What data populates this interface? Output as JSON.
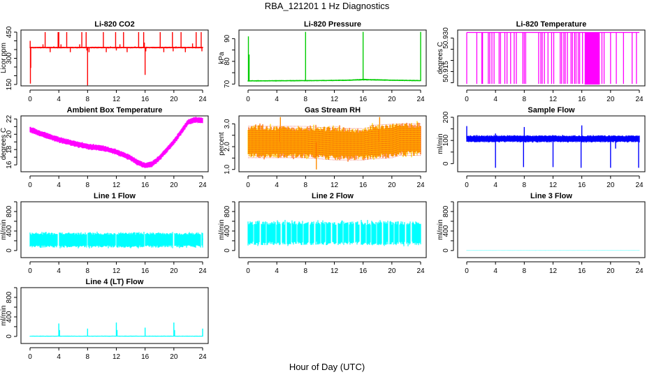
{
  "title": "RBA_121201  1 Hz Diagnostics",
  "xlabel": "Hour of Day (UTC)",
  "chart_data": [
    {
      "type": "line",
      "title": "Li-820 CO2",
      "ylabel": "Licor ppm",
      "color": "#ff0000",
      "ylim": [
        142,
        462
      ],
      "yticks": [
        150,
        200,
        250,
        300,
        350,
        400,
        450
      ],
      "ytick_labels": [
        "150",
        "",
        "",
        "300",
        "",
        "",
        "450"
      ],
      "xticks": [
        0,
        4,
        8,
        12,
        16,
        20,
        24
      ],
      "band": {
        "x": [
          0,
          24
        ],
        "low": [
          357,
          357
        ],
        "high": [
          366,
          366
        ]
      },
      "spikes": [
        [
          0.02,
          400
        ],
        [
          0.05,
          155
        ],
        [
          0.1,
          245
        ],
        [
          1.8,
          380
        ],
        [
          2.1,
          450
        ],
        [
          2.8,
          335
        ],
        [
          3.3,
          368
        ],
        [
          3.9,
          450
        ],
        [
          4.0,
          450
        ],
        [
          4.3,
          380
        ],
        [
          5.1,
          450
        ],
        [
          5.6,
          335
        ],
        [
          6.9,
          380
        ],
        [
          7.2,
          450
        ],
        [
          7.8,
          450
        ],
        [
          7.9,
          345
        ],
        [
          8.0,
          145
        ],
        [
          8.2,
          335
        ],
        [
          10.2,
          450
        ],
        [
          10.6,
          335
        ],
        [
          11.2,
          368
        ],
        [
          11.9,
          450
        ],
        [
          12.0,
          345
        ],
        [
          12.5,
          380
        ],
        [
          13.0,
          450
        ],
        [
          13.5,
          335
        ],
        [
          14.6,
          368
        ],
        [
          15.1,
          450
        ],
        [
          15.8,
          450
        ],
        [
          15.9,
          390
        ],
        [
          16.0,
          205
        ],
        [
          16.1,
          340
        ],
        [
          18.1,
          450
        ],
        [
          18.6,
          335
        ],
        [
          19.8,
          450
        ],
        [
          19.9,
          340
        ],
        [
          20.3,
          368
        ],
        [
          21.0,
          450
        ],
        [
          21.6,
          335
        ],
        [
          22.6,
          385
        ],
        [
          23.1,
          450
        ],
        [
          23.8,
          450
        ],
        [
          23.9,
          340
        ]
      ]
    },
    {
      "type": "line",
      "title": "Li-820 Pressure",
      "ylabel": "kPa",
      "color": "#00cc00",
      "ylim": [
        69.2,
        93.8
      ],
      "yticks": [
        70,
        75,
        80,
        85,
        90
      ],
      "ytick_labels": [
        "70",
        "",
        "80",
        "",
        "90"
      ],
      "xticks": [
        0,
        4,
        8,
        12,
        16,
        20,
        24
      ],
      "band": {
        "x": [
          0,
          8,
          12,
          14,
          16,
          20,
          24
        ],
        "low": [
          71.1,
          71.2,
          71.3,
          71.4,
          71.6,
          71.4,
          71.2
        ],
        "high": [
          71.7,
          71.8,
          71.9,
          72.0,
          72.3,
          72.0,
          71.8
        ]
      },
      "spikes": [
        [
          0.05,
          91
        ],
        [
          0.15,
          83
        ],
        [
          8.0,
          93
        ],
        [
          16.0,
          93
        ],
        [
          24.0,
          93
        ]
      ]
    },
    {
      "type": "line",
      "title": "Li-820 Temperature",
      "ylabel": "degrees C",
      "color": "#ff00ff",
      "ylim": [
        50.9086,
        50.9336
      ],
      "yticks": [
        50.91,
        50.915,
        50.92,
        50.925,
        50.93
      ],
      "ytick_labels": [
        "",
        "50.915",
        "",
        "",
        "50.930"
      ],
      "xticks": [
        0,
        4,
        8,
        12,
        16,
        20,
        24
      ],
      "levels": [
        50.9325,
        50.9095
      ],
      "drops": [
        0,
        1.4,
        2.1,
        2.2,
        3.0,
        3.2,
        3.5,
        3.8,
        4.5,
        4.7,
        5.3,
        5.6,
        6.1,
        6.6,
        6.9,
        7.8,
        8.0,
        8.2,
        10.0,
        10.3,
        10.5,
        10.8,
        11.3,
        11.8,
        12.1,
        13.0,
        13.2,
        13.5,
        13.7,
        14.0,
        14.5,
        14.7,
        15.0,
        15.2,
        15.5,
        15.7,
        16.1,
        18.8,
        19.1,
        20.0,
        20.8,
        21.8,
        23.0,
        23.6
      ],
      "dense_drop_range": [
        16.4,
        18.5
      ]
    },
    {
      "type": "line",
      "title": "Ambient Box Temperature",
      "ylabel": "degrees C",
      "color": "#ff00ff",
      "ylim": [
        15.1,
        22.4
      ],
      "yticks": [
        16,
        17,
        18,
        19,
        20,
        21,
        22
      ],
      "ytick_labels": [
        "16",
        "",
        "18",
        "",
        "20",
        "",
        "22"
      ],
      "xticks": [
        0,
        4,
        8,
        12,
        16,
        20,
        24
      ],
      "band": {
        "x": [
          0,
          2,
          4,
          6,
          8,
          10,
          12,
          14,
          15,
          16,
          17,
          18,
          20,
          22,
          23,
          24
        ],
        "low": [
          20.2,
          19.5,
          18.9,
          18.4,
          18.0,
          17.8,
          17.3,
          16.5,
          15.9,
          15.5,
          15.7,
          16.5,
          18.6,
          21.2,
          21.5,
          21.4
        ],
        "high": [
          21.0,
          20.3,
          19.7,
          19.2,
          18.8,
          18.6,
          18.1,
          17.3,
          16.7,
          16.3,
          16.5,
          17.3,
          19.4,
          22.0,
          22.3,
          22.2
        ]
      },
      "spikes": []
    },
    {
      "type": "line",
      "title": "Gas Stream RH",
      "ylabel": "percent",
      "color": "#ff8c00",
      "ylim": [
        0.9,
        3.35
      ],
      "yticks": [
        1.0,
        1.5,
        2.0,
        2.5,
        3.0
      ],
      "ytick_labels": [
        "1.0",
        "",
        "2.0",
        "",
        "3.0"
      ],
      "xticks": [
        0,
        4,
        8,
        12,
        16,
        20,
        24
      ],
      "band": {
        "x": [
          0,
          8,
          12,
          16,
          17,
          20,
          21,
          24
        ],
        "low": [
          1.5,
          1.5,
          1.4,
          1.4,
          1.45,
          1.5,
          1.6,
          1.6
        ],
        "high": [
          2.95,
          2.9,
          2.9,
          2.8,
          2.95,
          3.0,
          3.05,
          3.05
        ]
      },
      "spikes": [
        [
          4.5,
          3.3
        ],
        [
          9.5,
          1.0
        ],
        [
          18.3,
          3.3
        ]
      ]
    },
    {
      "type": "line",
      "title": "Sample Flow",
      "ylabel": "ml/min",
      "color": "#0000ff",
      "ylim": [
        -35,
        206
      ],
      "yticks": [
        0,
        50,
        100,
        150,
        200
      ],
      "ytick_labels": [
        "0",
        "",
        "100",
        "",
        "200"
      ],
      "xticks": [
        0,
        4,
        8,
        12,
        16,
        20,
        24
      ],
      "band": {
        "x": [
          0,
          24
        ],
        "low": [
          92,
          92
        ],
        "high": [
          122,
          122
        ]
      },
      "spikes": [
        [
          0.0,
          162
        ],
        [
          4.0,
          130
        ],
        [
          4.0,
          -18
        ],
        [
          8.0,
          158
        ],
        [
          7.9,
          -15
        ],
        [
          12.0,
          -15
        ],
        [
          16.0,
          165
        ],
        [
          15.9,
          -18
        ],
        [
          20.0,
          -18
        ],
        [
          20.7,
          65
        ],
        [
          23.9,
          -18
        ]
      ]
    },
    {
      "type": "line",
      "title": "Line 1 Flow",
      "ylabel": "ml/min",
      "color": "#00ffff",
      "ylim": [
        -145,
        1000
      ],
      "yticks": [
        0,
        200,
        400,
        600,
        800,
        1000
      ],
      "ytick_labels": [
        "0",
        "",
        "400",
        "",
        "800",
        ""
      ],
      "xticks": [
        0,
        4,
        8,
        12,
        16,
        20,
        24
      ],
      "band": {
        "x": [
          0,
          24
        ],
        "low": [
          60,
          60
        ],
        "high": [
          370,
          370
        ]
      },
      "gaps": [
        3.95,
        7.95,
        11.95,
        15.95,
        19.95,
        23.8
      ],
      "spikes": [
        [
          24.0,
          250
        ]
      ]
    },
    {
      "type": "line",
      "title": "Line 2 Flow",
      "ylabel": "ml/min",
      "color": "#00ffff",
      "ylim": [
        -145,
        1000
      ],
      "yticks": [
        0,
        200,
        400,
        600,
        800,
        1000
      ],
      "ytick_labels": [
        "0",
        "",
        "400",
        "",
        "800",
        ""
      ],
      "xticks": [
        0,
        4,
        8,
        12,
        16,
        20,
        24
      ],
      "band": {
        "x": [
          0,
          24
        ],
        "low": [
          110,
          110
        ],
        "high": [
          600,
          600
        ]
      },
      "gaps": [
        0.8,
        1.7,
        2.5,
        3.9,
        4.6,
        5.3,
        6.0,
        6.8,
        7.7,
        8.5,
        9.3,
        10.1,
        10.8,
        11.6,
        12.4,
        13.2,
        14.0,
        14.8,
        15.6,
        16.4,
        17.1,
        17.9,
        18.7,
        19.6,
        20.3,
        21.0,
        21.9,
        22.7
      ],
      "spikes": []
    },
    {
      "type": "line",
      "title": "Line 3 Flow",
      "ylabel": "ml/min",
      "color": "#00ffff",
      "ylim": [
        -145,
        1000
      ],
      "yticks": [
        0,
        200,
        400,
        600,
        800,
        1000
      ],
      "ytick_labels": [
        "0",
        "",
        "400",
        "",
        "800",
        ""
      ],
      "xticks": [
        0,
        4,
        8,
        12,
        16,
        20,
        24
      ],
      "band": {
        "x": [
          0,
          24
        ],
        "low": [
          -3,
          -3
        ],
        "high": [
          3,
          3
        ]
      },
      "spikes": []
    },
    {
      "type": "line",
      "title": "Line 4 (LT) Flow",
      "ylabel": "ml/min",
      "color": "#00ffff",
      "ylim": [
        -145,
        1000
      ],
      "yticks": [
        0,
        200,
        400,
        600,
        800,
        1000
      ],
      "ytick_labels": [
        "0",
        "",
        "400",
        "",
        "800",
        ""
      ],
      "xticks": [
        0,
        4,
        8,
        12,
        16,
        20,
        24
      ],
      "band": {
        "x": [
          0,
          24
        ],
        "low": [
          -5,
          -5
        ],
        "high": [
          15,
          15
        ]
      },
      "spikes": [
        [
          4.0,
          265
        ],
        [
          4.1,
          130
        ],
        [
          8.0,
          160
        ],
        [
          12.0,
          285
        ],
        [
          12.1,
          130
        ],
        [
          16.0,
          180
        ],
        [
          20.0,
          285
        ],
        [
          20.1,
          130
        ],
        [
          24.0,
          160
        ]
      ]
    }
  ]
}
